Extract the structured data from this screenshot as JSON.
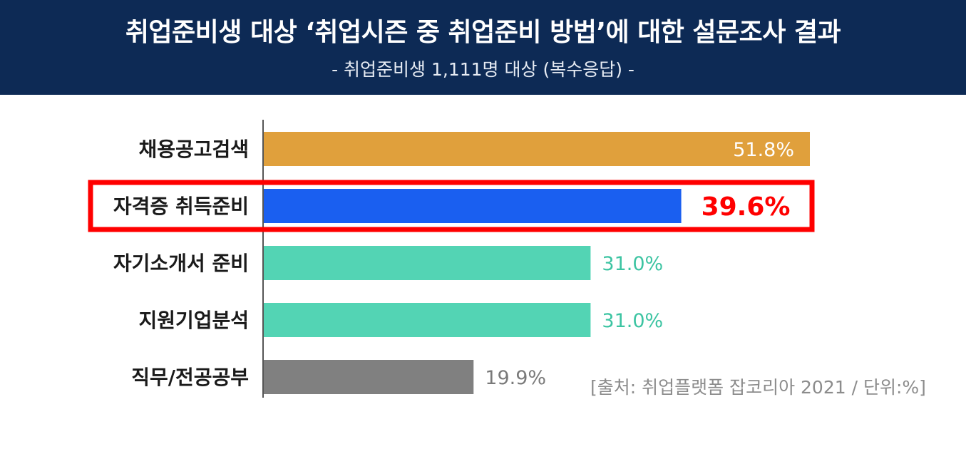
{
  "header": {
    "title": "취업준비생 대상 ‘취업시즌 중 취업준비 방법’에 대한 설문조사 결과",
    "subtitle": "- 취업준비생 1,111명 대상 (복수응답) -"
  },
  "chart_data": {
    "type": "bar",
    "orientation": "horizontal",
    "categories": [
      "채용공고검색",
      "자격증 취득준비",
      "자기소개서 준비",
      "지원기업분석",
      "직무/전공공부"
    ],
    "values": [
      51.8,
      39.6,
      31.0,
      31.0,
      19.9
    ],
    "value_labels": [
      "51.8%",
      "39.6%",
      "31.0%",
      "31.0%",
      "19.9%"
    ],
    "bar_colors": [
      "#e0a03c",
      "#1a5ff0",
      "#53d4b4",
      "#53d4b4",
      "#808080"
    ],
    "label_colors": [
      "#ffffff",
      "#ff0000",
      "#3cc4a2",
      "#3cc4a2",
      "#7a7a7a"
    ],
    "highlight_index": 1,
    "highlight_color": "#ff0000",
    "xlim": [
      0,
      51.8
    ],
    "grid": false
  },
  "source": "[출처: 취업플랫폼 잡코리아 2021 / 단위:%]"
}
